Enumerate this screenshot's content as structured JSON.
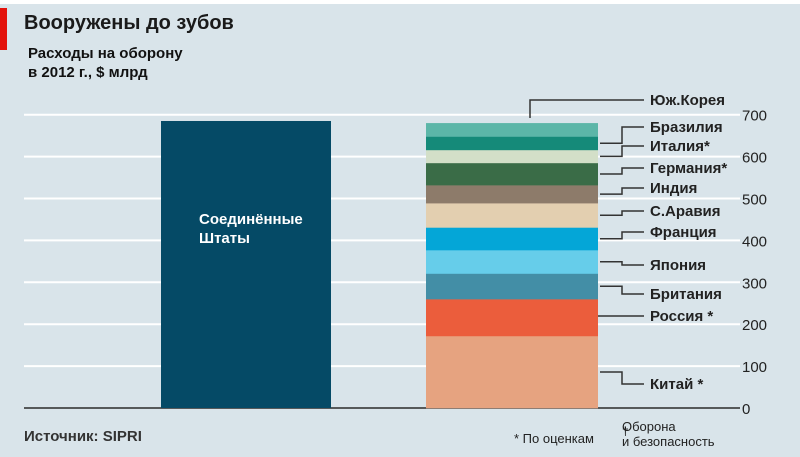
{
  "chart_data": {
    "type": "bar",
    "title": "Вооружены до зубов",
    "subtitle_line1": "Расходы на оборону",
    "subtitle_line2": "в 2012 г., $ млрд",
    "ylim": [
      0,
      700
    ],
    "yticks": [
      0,
      100,
      200,
      300,
      400,
      500,
      600,
      700
    ],
    "us": {
      "label_line1": "Соединённые",
      "label_line2": "Штаты",
      "value": 685,
      "color": "#054a66"
    },
    "stack": [
      {
        "name": "Китай *",
        "value": 172,
        "color": "#e6a380"
      },
      {
        "name": "Россия *",
        "value": 88,
        "color": "#eb5d3c"
      },
      {
        "name": "Британия",
        "value": 61,
        "color": "#438ea6"
      },
      {
        "name": "Япония",
        "value": 56,
        "color": "#66cdea"
      },
      {
        "name": "Франция",
        "value": 54,
        "color": "#04a6d7"
      },
      {
        "name": "С.Аравия",
        "value": 58,
        "color": "#e3cfb0"
      },
      {
        "name": "Индия",
        "value": 43,
        "color": "#8d7b6a"
      },
      {
        "name": "Германия*",
        "value": 53,
        "color": "#3a6c47"
      },
      {
        "name": "Италия*",
        "value": 31,
        "color": "#d3dfc8"
      },
      {
        "name": "Бразилия",
        "value": 32,
        "color": "#158a79"
      },
      {
        "name": "Юж.Корея",
        "value": 32,
        "color": "#5cb6a8"
      }
    ],
    "grid": true
  },
  "footer": {
    "source": "Источник: SIPRI",
    "estimate_note": "* По оценкам",
    "dagger_note_line1": "Оборона",
    "dagger_note_line2": "и безопасность",
    "dagger": "†"
  }
}
